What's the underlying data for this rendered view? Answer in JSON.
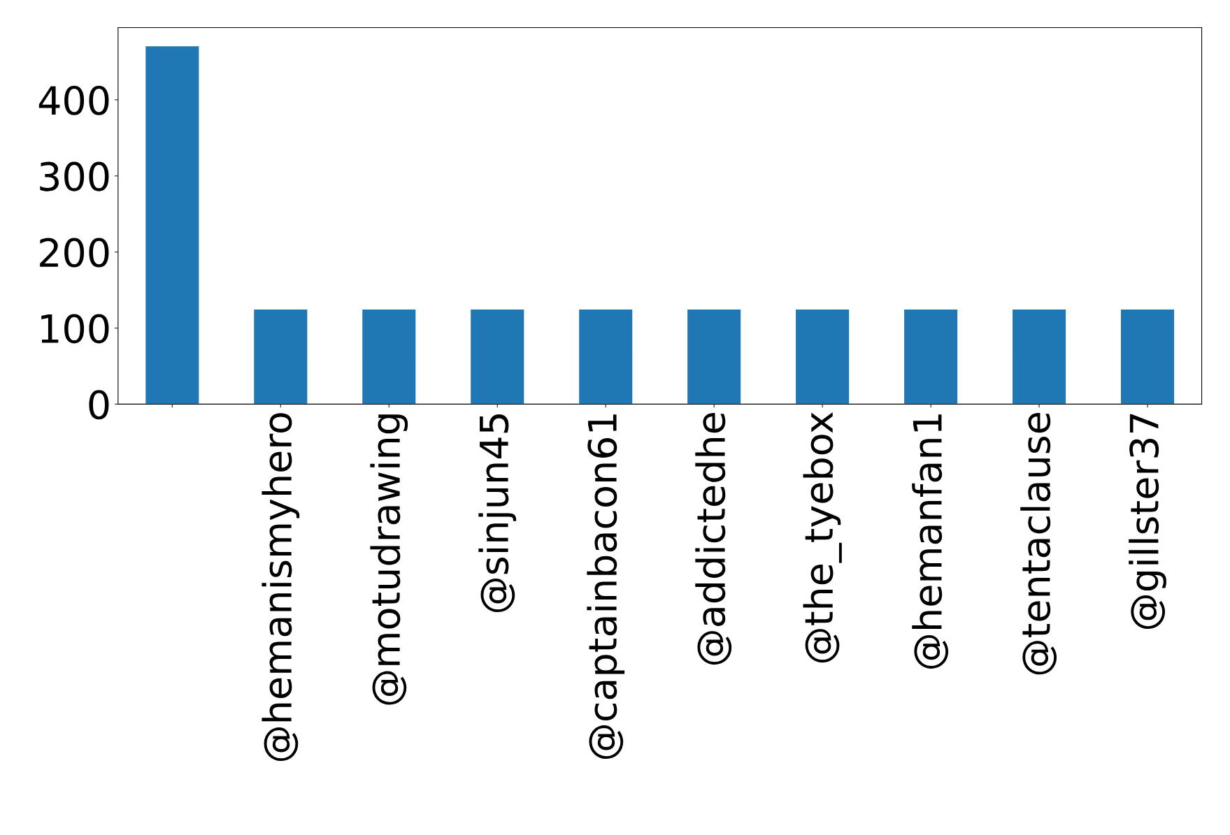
{
  "chart_data": {
    "type": "bar",
    "categories": [
      null,
      "@hemanismyhero",
      "@motudrawing",
      "@sinjun45",
      "@captainbacon61",
      "@addictedhe",
      "@the_tyebox",
      "@hemanfan1",
      "@tentaclause",
      "@gillster37"
    ],
    "values": [
      471,
      125,
      125,
      125,
      125,
      125,
      125,
      125,
      125,
      125
    ],
    "color": "#1f77b4",
    "ylim": [
      0,
      495
    ],
    "yticks": [
      0,
      100,
      200,
      300,
      400
    ],
    "grid": false
  }
}
